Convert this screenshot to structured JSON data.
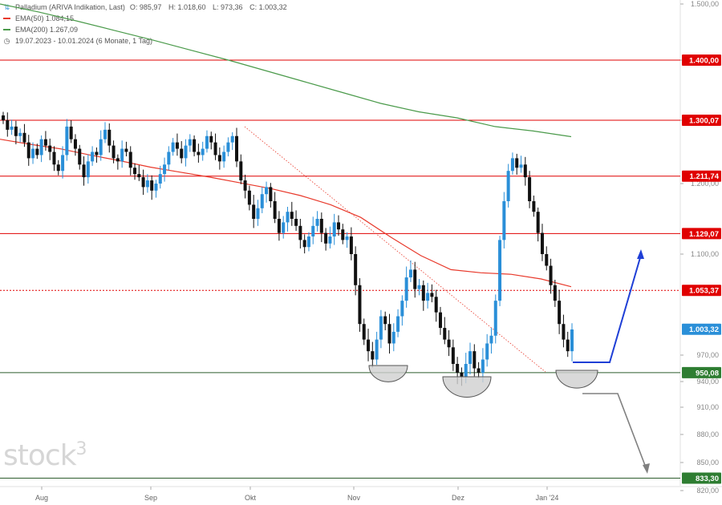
{
  "legend": {
    "title": "Palladium (ARIVA Indikation, Last)",
    "ohlc": {
      "o": "O: 985,97",
      "h": "H: 1.018,60",
      "l": "L: 973,36",
      "c": "C: 1.003,32"
    },
    "ema50": "EMA(50)  1.084,15",
    "ema200": "EMA(200)  1.267,09",
    "range": "19.07.2023 - 10.01.2024  (6 Monate, 1 Tag)"
  },
  "logo": {
    "text": "stock",
    "sup": "3"
  },
  "colors": {
    "up": "#2a8fd8",
    "down": "#111111",
    "ema50": "#e8392b",
    "ema200": "#4a9a4a",
    "resistance": "#e00000",
    "support": "#2e7d32",
    "arrow_up": "#1f3fd6",
    "arrow_down": "#808080"
  },
  "chart_data": {
    "type": "candlestick",
    "title": "Palladium (ARIVA Indikation, Last)",
    "x_ticks": [
      "Aug",
      "Sep",
      "Okt",
      "Nov",
      "Dez",
      "Jan '24"
    ],
    "y_ticks": [
      "1.500,00",
      "1.400,00",
      "1.300,00",
      "1.200,00",
      "1.100,00",
      "970,00",
      "940,00",
      "910,00",
      "880,00",
      "850,00",
      "820,00"
    ],
    "ylim": [
      815,
      1500
    ],
    "levels": [
      {
        "value": 1400.0,
        "label": "1.400,00",
        "style": "red"
      },
      {
        "value": 1300.07,
        "label": "1.300,07",
        "style": "red"
      },
      {
        "value": 1211.74,
        "label": "1.211,74",
        "style": "red"
      },
      {
        "value": 1129.07,
        "label": "1.129,07",
        "style": "red"
      },
      {
        "value": 1053.37,
        "label": "1.053,37",
        "style": "dotted"
      },
      {
        "value": 1003.32,
        "label": "1.003,32",
        "style": "last"
      },
      {
        "value": 950.08,
        "label": "950,08",
        "style": "green"
      },
      {
        "value": 833.3,
        "label": "833,30",
        "style": "green"
      }
    ],
    "closes": [
      1300,
      1285,
      1290,
      1275,
      1280,
      1265,
      1240,
      1255,
      1245,
      1270,
      1260,
      1250,
      1230,
      1220,
      1245,
      1290,
      1270,
      1255,
      1230,
      1210,
      1235,
      1250,
      1245,
      1270,
      1285,
      1260,
      1240,
      1235,
      1255,
      1250,
      1225,
      1215,
      1210,
      1195,
      1205,
      1190,
      1200,
      1215,
      1230,
      1250,
      1265,
      1255,
      1240,
      1260,
      1270,
      1250,
      1245,
      1255,
      1275,
      1265,
      1245,
      1235,
      1250,
      1265,
      1275,
      1235,
      1205,
      1190,
      1170,
      1150,
      1165,
      1185,
      1195,
      1175,
      1150,
      1130,
      1145,
      1160,
      1150,
      1140,
      1120,
      1110,
      1125,
      1140,
      1150,
      1130,
      1115,
      1125,
      1145,
      1135,
      1120,
      1125,
      1100,
      1060,
      1010,
      990,
      975,
      965,
      990,
      1020,
      1010,
      985,
      1000,
      1020,
      1040,
      1070,
      1080,
      1055,
      1060,
      1040,
      1050,
      1045,
      1025,
      1005,
      990,
      980,
      960,
      950,
      945,
      960,
      975,
      955,
      950,
      965,
      985,
      995,
      1040,
      1120,
      1175,
      1220,
      1240,
      1225,
      1230,
      1210,
      1175,
      1160,
      1130,
      1100,
      1085,
      1060,
      1040,
      1010,
      990,
      975,
      1003
    ],
    "ema50": [
      1270,
      1262,
      1255,
      1245,
      1236,
      1226,
      1218,
      1210,
      1201,
      1193,
      1183,
      1170,
      1152,
      1124,
      1098,
      1080,
      1076,
      1074,
      1068,
      1058
    ],
    "ema200": [
      1500,
      1486,
      1470,
      1453,
      1436,
      1418,
      1400,
      1382,
      1364,
      1346,
      1328,
      1314,
      1304,
      1290,
      1283,
      1274
    ],
    "annotations": [
      {
        "type": "downtrend",
        "from": [
          1300,
          "Okt"
        ],
        "to": [
          960,
          "Jan '24"
        ]
      },
      {
        "type": "double-bottom-arcs",
        "count": 3
      },
      {
        "type": "arrow-up",
        "target": 1100
      },
      {
        "type": "arrow-down",
        "target": 850
      }
    ]
  }
}
